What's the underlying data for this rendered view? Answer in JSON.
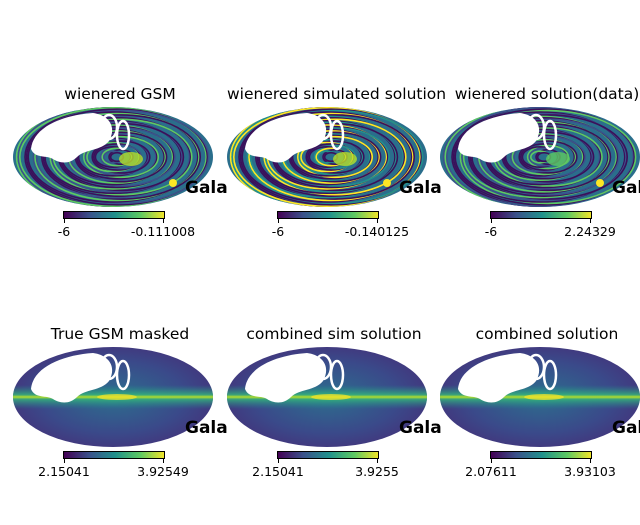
{
  "chart_data": {
    "type": "heatmap",
    "panels": [
      {
        "title": "wienered GSM",
        "colorbar": {
          "min": "-6",
          "max": "-0.111008"
        },
        "corner_label": "Gala",
        "style": "striped"
      },
      {
        "title": "wienered simulated solution",
        "colorbar": {
          "min": "-6",
          "max": "-0.140125"
        },
        "corner_label": "Gala",
        "style": "striped"
      },
      {
        "title": "wienered solution(data)",
        "colorbar": {
          "min": "-6",
          "max": "2.24329"
        },
        "corner_label": "Gala",
        "style": "noisy"
      },
      {
        "title": "True GSM masked",
        "colorbar": {
          "min": "2.15041",
          "max": "3.92549"
        },
        "corner_label": "Gala",
        "style": "smooth"
      },
      {
        "title": "combined sim solution",
        "colorbar": {
          "min": "2.15041",
          "max": "3.9255"
        },
        "corner_label": "Gala",
        "style": "smooth"
      },
      {
        "title": "combined solution",
        "colorbar": {
          "min": "2.07611",
          "max": "3.93103"
        },
        "corner_label": "Gala",
        "style": "smooth"
      }
    ],
    "projection": "mollweide",
    "colormap": "viridis"
  }
}
